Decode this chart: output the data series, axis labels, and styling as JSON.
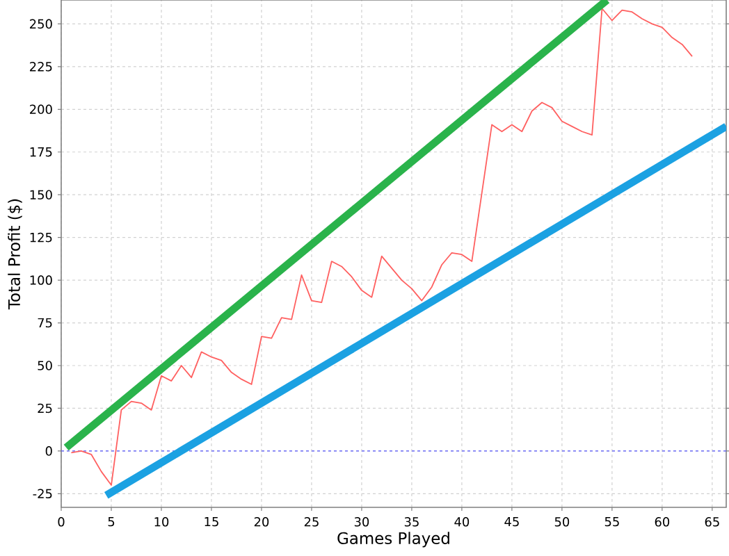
{
  "chart_data": {
    "type": "line",
    "xlabel": "Games Played",
    "ylabel": "Total Profit ($)",
    "x": [
      1,
      2,
      3,
      4,
      5,
      6,
      7,
      8,
      9,
      10,
      11,
      12,
      13,
      14,
      15,
      16,
      17,
      18,
      19,
      20,
      21,
      22,
      23,
      24,
      25,
      26,
      27,
      28,
      29,
      30,
      31,
      32,
      33,
      34,
      35,
      36,
      37,
      38,
      39,
      40,
      41,
      42,
      43,
      44,
      45,
      46,
      47,
      48,
      49,
      50,
      51,
      52,
      53,
      54,
      55,
      56,
      57,
      58,
      59,
      60,
      61,
      62,
      63
    ],
    "series": [
      {
        "color": "#ff6060",
        "values": [
          -1,
          0,
          -2,
          -12,
          -20,
          24,
          29,
          28,
          24,
          44,
          41,
          50,
          43,
          58,
          55,
          53,
          46,
          42,
          39,
          67,
          66,
          78,
          77,
          103,
          88,
          87,
          111,
          108,
          102,
          94,
          90,
          114,
          107,
          100,
          95,
          88,
          96,
          109,
          116,
          115,
          111,
          151,
          191,
          187,
          191,
          187,
          199,
          204,
          201,
          193,
          190,
          187,
          185,
          259,
          252,
          258,
          257,
          253,
          250,
          248,
          242,
          238,
          231
        ]
      },
      {
        "color": "#2ab34b",
        "x": [
          0.5,
          54.5
        ],
        "values": [
          2,
          264
        ]
      },
      {
        "color": "#1ba1e2",
        "x": [
          4.5,
          66.4
        ],
        "values": [
          -26,
          190
        ]
      }
    ],
    "xlim": [
      0,
      66.4
    ],
    "ylim": [
      -33,
      264
    ],
    "xticks": [
      0,
      5,
      10,
      15,
      20,
      25,
      30,
      35,
      40,
      45,
      50,
      55,
      60,
      65
    ],
    "yticks": [
      -25,
      0,
      25,
      50,
      75,
      100,
      125,
      150,
      175,
      200,
      225,
      250
    ],
    "grid": true,
    "ref_lines": [
      {
        "axis": "y",
        "value": 0,
        "color": "#5a5aff",
        "line_style": "dashed"
      }
    ]
  }
}
